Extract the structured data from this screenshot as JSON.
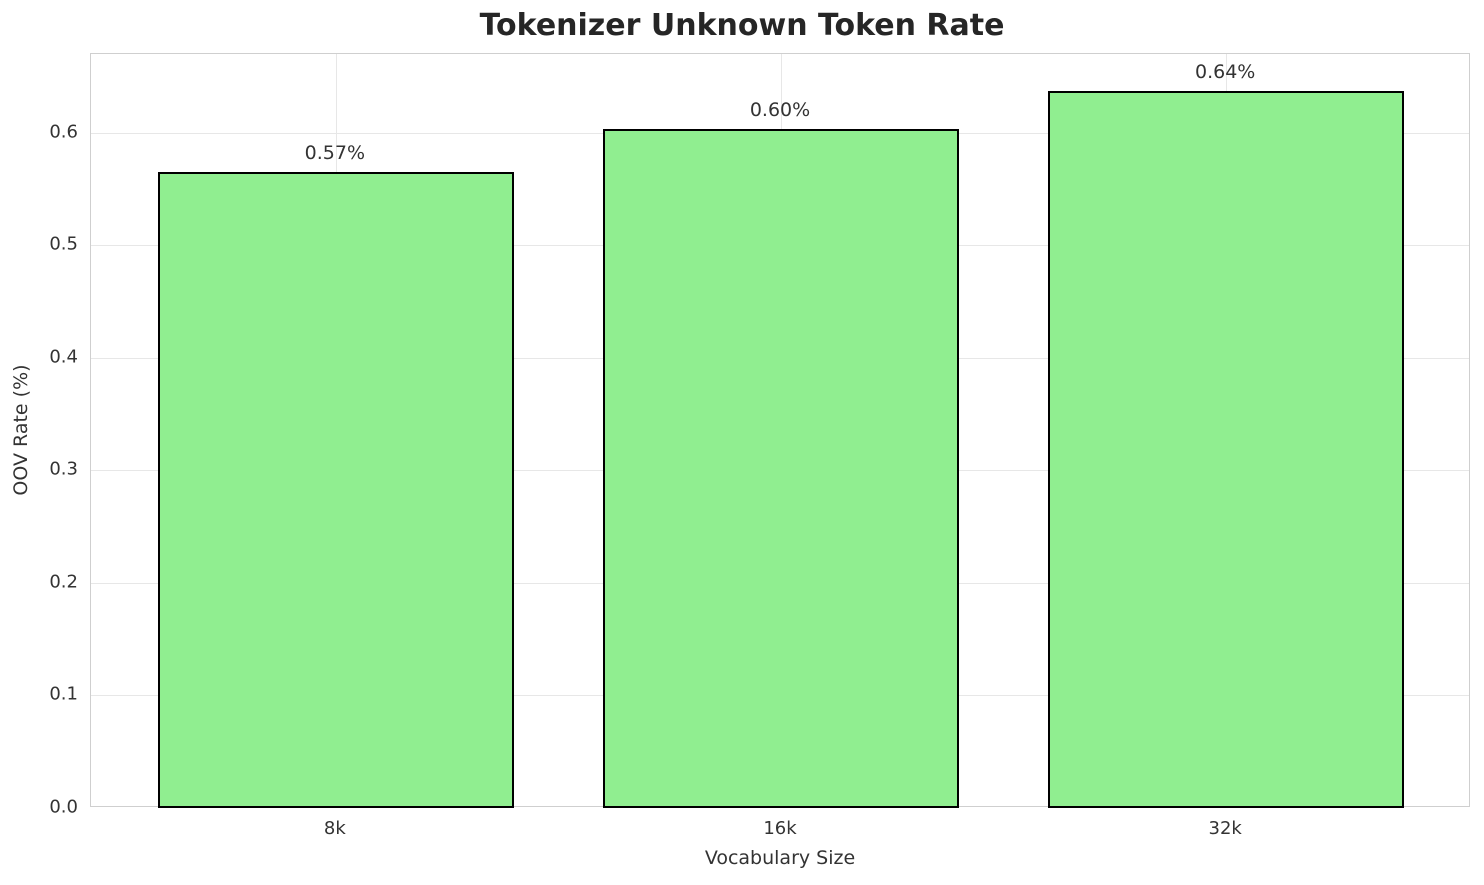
{
  "chart_data": {
    "type": "bar",
    "title": "Tokenizer Unknown Token Rate",
    "xlabel": "Vocabulary Size",
    "ylabel": "OOV Rate (%)",
    "categories": [
      "8k",
      "16k",
      "32k"
    ],
    "values": [
      0.565,
      0.603,
      0.637
    ],
    "bar_labels": [
      "0.57%",
      "0.60%",
      "0.64%"
    ],
    "yticks": [
      0.0,
      0.1,
      0.2,
      0.3,
      0.4,
      0.5,
      0.6
    ],
    "ytick_labels": [
      "0.0",
      "0.1",
      "0.2",
      "0.3",
      "0.4",
      "0.5",
      "0.6"
    ],
    "ylim": [
      0,
      0.67
    ],
    "grid": true,
    "legend": false,
    "bar_color": "#90EE90",
    "bar_edge_color": "#000000",
    "bar_width_ratio": 0.8
  }
}
